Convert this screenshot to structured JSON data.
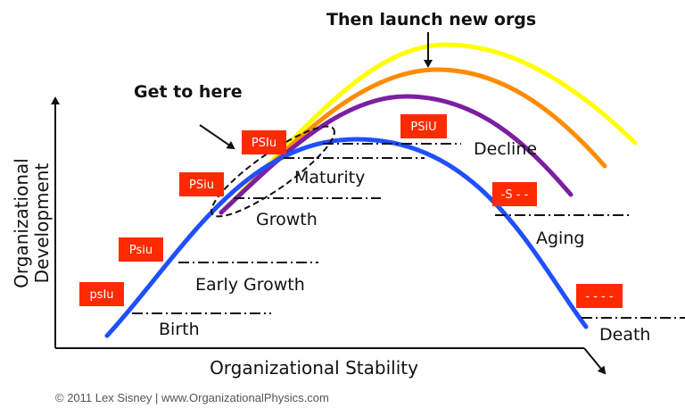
{
  "colors": {
    "blue": "#1f4fff",
    "purple": "#7b1fa0",
    "orange": "#ff8c00",
    "yellow": "#ffff00",
    "badge": "#ff2a00",
    "guide": "#111111"
  },
  "axes": {
    "x_label": "Organizational Stability",
    "y_label_line1": "Organizational",
    "y_label_line2": "Development"
  },
  "callouts": {
    "launch": "Then launch new orgs",
    "here": "Get to here"
  },
  "stages": [
    {
      "label": "Birth",
      "badge": "psIu"
    },
    {
      "label": "Early Growth",
      "badge": "Psiu"
    },
    {
      "label": "Growth",
      "badge": "PSiu"
    },
    {
      "label": "Maturity",
      "badge": "PSIu"
    },
    {
      "label": "Decline",
      "badge": "PSiU"
    },
    {
      "label": "Aging",
      "badge": "-S - -"
    },
    {
      "label": "Death",
      "badge": "- - - -"
    }
  ],
  "curves": [
    {
      "name": "blue",
      "icon": "blue-curve"
    },
    {
      "name": "purple",
      "icon": "purple-curve"
    },
    {
      "name": "orange",
      "icon": "orange-curve"
    },
    {
      "name": "yellow",
      "icon": "yellow-curve"
    }
  ],
  "copyright": "© 2011 Lex Sisney | www.OrganizationalPhysics.com"
}
